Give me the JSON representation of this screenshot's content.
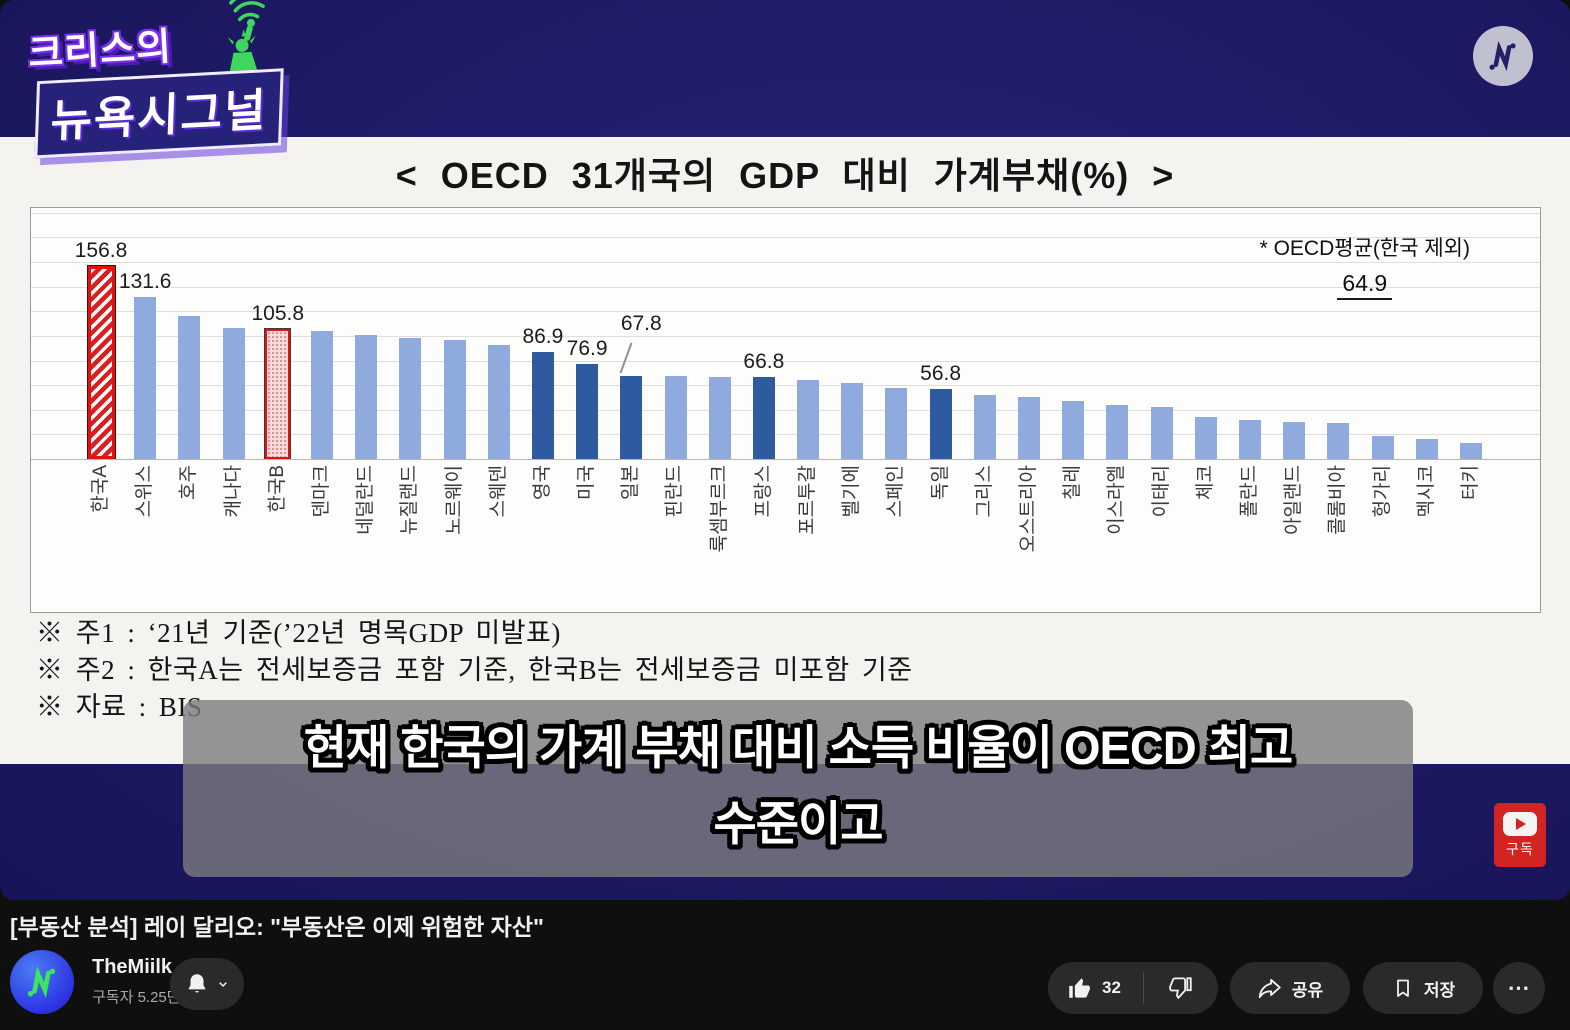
{
  "player": {
    "badge_line1": "크리스의",
    "badge_line2": "뉴욕시그널",
    "subtitle": {
      "line1": "현재 한국의 가계 부채 대비 소득 비율이 OECD 최고",
      "line2": "수준이고"
    },
    "subscribe_badge": "구독"
  },
  "chart_data": {
    "type": "bar",
    "title": "< OECD 31개국의 GDP 대비 가계부채(%) >",
    "ylim": [
      0,
      200
    ],
    "grid_step": 20,
    "grid": true,
    "annotation": {
      "label": "* OECD평균(한국 제외)",
      "value": "64.9"
    },
    "notes": [
      "※ 주1 : ‘21년 기준(’22년 명목GDP 미발표)",
      "※ 주2 : 한국A는 전세보증금 포함 기준, 한국B는 전세보증금 미포함 기준",
      "※ 자료 : BIS"
    ],
    "bars": [
      {
        "country": "한국A",
        "value": 156.8,
        "label": "156.8",
        "style": "korea-a"
      },
      {
        "country": "스위스",
        "value": 131.6,
        "label": "131.6",
        "style": "light"
      },
      {
        "country": "호주",
        "value": 116,
        "style": "light"
      },
      {
        "country": "캐나다",
        "value": 106.5,
        "style": "light"
      },
      {
        "country": "한국B",
        "value": 105.8,
        "label": "105.8",
        "style": "korea-b"
      },
      {
        "country": "덴마크",
        "value": 104,
        "style": "light"
      },
      {
        "country": "네덜란드",
        "value": 100.5,
        "style": "light"
      },
      {
        "country": "뉴질랜드",
        "value": 98,
        "style": "light"
      },
      {
        "country": "노르웨이",
        "value": 97,
        "style": "light"
      },
      {
        "country": "스웨덴",
        "value": 92.5,
        "style": "light"
      },
      {
        "country": "영국",
        "value": 86.9,
        "label": "86.9",
        "style": "dark"
      },
      {
        "country": "미국",
        "value": 76.9,
        "label": "76.9",
        "style": "dark"
      },
      {
        "country": "일본",
        "value": 67.8,
        "label": "67.8",
        "style": "dark",
        "label_offset": true
      },
      {
        "country": "핀란드",
        "value": 67.5,
        "style": "light"
      },
      {
        "country": "룩셈부르크",
        "value": 67,
        "style": "light"
      },
      {
        "country": "프랑스",
        "value": 66.8,
        "label": "66.8",
        "style": "dark"
      },
      {
        "country": "포르투갈",
        "value": 64.5,
        "style": "light"
      },
      {
        "country": "벨기에",
        "value": 62,
        "style": "light"
      },
      {
        "country": "스페인",
        "value": 57.5,
        "style": "light"
      },
      {
        "country": "독일",
        "value": 56.8,
        "label": "56.8",
        "style": "dark"
      },
      {
        "country": "그리스",
        "value": 52,
        "style": "light"
      },
      {
        "country": "오스트리아",
        "value": 50,
        "style": "light"
      },
      {
        "country": "칠레",
        "value": 47,
        "style": "light"
      },
      {
        "country": "이스라엘",
        "value": 44,
        "style": "light"
      },
      {
        "country": "이태리",
        "value": 42.5,
        "style": "light"
      },
      {
        "country": "체코",
        "value": 34,
        "style": "light"
      },
      {
        "country": "폴란드",
        "value": 31.5,
        "style": "light"
      },
      {
        "country": "아일랜드",
        "value": 30.5,
        "style": "light"
      },
      {
        "country": "콜롬비아",
        "value": 29,
        "style": "light"
      },
      {
        "country": "헝가리",
        "value": 19,
        "style": "light"
      },
      {
        "country": "멕시코",
        "value": 16,
        "style": "light"
      },
      {
        "country": "터키",
        "value": 13,
        "style": "light"
      }
    ],
    "colors": {
      "light_bar": "#8faadc",
      "dark_bar": "#2e5b9f",
      "korea_red": "#e01212"
    }
  },
  "youtube": {
    "video_title": "[부동산 분석] 레이 달리오: \"부동산은 이제 위험한 자산\"",
    "channel": {
      "name": "TheMiilk",
      "subscribers": "구독자 5.25만명"
    },
    "actions": {
      "likes": "32",
      "share": "공유",
      "save": "저장",
      "more": "⋯"
    }
  }
}
